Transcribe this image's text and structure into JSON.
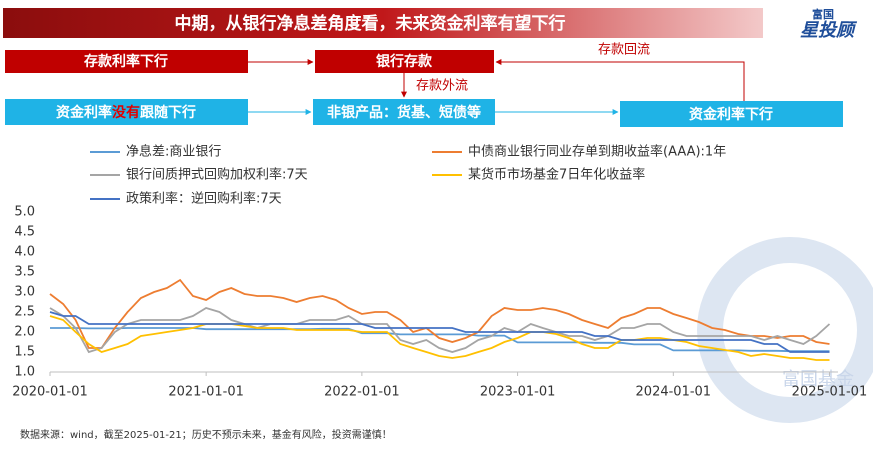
{
  "chart_data": {
    "type": "line",
    "title": "中期，从银行净息差角度看，未来资金利率有望下行",
    "source": "数据来源：wind，截至2025-01-21；历史不预示未来，基金有风险，投资需谨慎！",
    "x": [
      "2020-01-01",
      "2020-02-01",
      "2020-03-01",
      "2020-04-01",
      "2020-05-01",
      "2020-06-01",
      "2020-07-01",
      "2020-08-01",
      "2020-09-01",
      "2020-10-01",
      "2020-11-01",
      "2020-12-01",
      "2021-01-01",
      "2021-02-01",
      "2021-03-01",
      "2021-04-01",
      "2021-05-01",
      "2021-06-01",
      "2021-07-01",
      "2021-08-01",
      "2021-09-01",
      "2021-10-01",
      "2021-11-01",
      "2021-12-01",
      "2022-01-01",
      "2022-02-01",
      "2022-03-01",
      "2022-04-01",
      "2022-05-01",
      "2022-06-01",
      "2022-07-01",
      "2022-08-01",
      "2022-09-01",
      "2022-10-01",
      "2022-11-01",
      "2022-12-01",
      "2023-01-01",
      "2023-02-01",
      "2023-03-01",
      "2023-04-01",
      "2023-05-01",
      "2023-06-01",
      "2023-07-01",
      "2023-08-01",
      "2023-09-01",
      "2023-10-01",
      "2023-11-01",
      "2023-12-01",
      "2024-01-01",
      "2024-02-01",
      "2024-03-01",
      "2024-04-01",
      "2024-05-01",
      "2024-06-01",
      "2024-07-01",
      "2024-08-01",
      "2024-09-01",
      "2024-10-01",
      "2024-11-01",
      "2024-12-01",
      "2025-01-01"
    ],
    "series": [
      {
        "name": "净息差:商业银行",
        "color": "#5b9bd5",
        "values": [
          2.1,
          2.1,
          2.1,
          2.09,
          2.09,
          2.09,
          2.1,
          2.1,
          2.1,
          2.1,
          2.1,
          2.1,
          2.07,
          2.07,
          2.07,
          2.07,
          2.07,
          2.07,
          2.07,
          2.07,
          2.07,
          2.08,
          2.08,
          2.08,
          1.97,
          1.97,
          1.97,
          1.94,
          1.94,
          1.94,
          1.94,
          1.94,
          1.94,
          1.91,
          1.91,
          1.91,
          1.74,
          1.74,
          1.74,
          1.74,
          1.74,
          1.74,
          1.73,
          1.73,
          1.73,
          1.69,
          1.69,
          1.69,
          1.54,
          1.54,
          1.54,
          1.54,
          1.54,
          1.54,
          1.53,
          1.53,
          1.53,
          1.52,
          1.52,
          1.52,
          1.52
        ]
      },
      {
        "name": "中债商业银行同业存单到期收益率(AAA):1年",
        "color": "#ed7d31",
        "values": [
          2.95,
          2.7,
          2.3,
          1.6,
          1.6,
          2.1,
          2.5,
          2.85,
          3.0,
          3.1,
          3.3,
          2.9,
          2.8,
          3.0,
          3.1,
          2.95,
          2.9,
          2.9,
          2.85,
          2.75,
          2.85,
          2.9,
          2.8,
          2.6,
          2.45,
          2.5,
          2.5,
          2.3,
          2.0,
          2.1,
          1.85,
          1.75,
          1.85,
          2.0,
          2.4,
          2.6,
          2.55,
          2.55,
          2.6,
          2.55,
          2.45,
          2.3,
          2.2,
          2.1,
          2.35,
          2.45,
          2.6,
          2.6,
          2.45,
          2.35,
          2.25,
          2.1,
          2.05,
          1.95,
          1.9,
          1.9,
          1.85,
          1.9,
          1.9,
          1.75,
          1.7
        ]
      },
      {
        "name": "银行间质押式回购加权利率:7天",
        "color": "#a5a5a5",
        "values": [
          2.6,
          2.4,
          2.1,
          1.5,
          1.6,
          2.0,
          2.2,
          2.3,
          2.3,
          2.3,
          2.3,
          2.4,
          2.6,
          2.5,
          2.3,
          2.2,
          2.1,
          2.2,
          2.2,
          2.2,
          2.3,
          2.3,
          2.3,
          2.4,
          2.2,
          2.2,
          2.2,
          1.8,
          1.7,
          1.8,
          1.6,
          1.5,
          1.6,
          1.8,
          1.9,
          2.1,
          2.0,
          2.2,
          2.1,
          2.0,
          1.9,
          1.9,
          1.8,
          1.9,
          2.1,
          2.1,
          2.2,
          2.2,
          2.0,
          1.9,
          1.9,
          1.9,
          1.9,
          1.9,
          1.9,
          1.8,
          1.9,
          1.8,
          1.7,
          1.9,
          2.2
        ]
      },
      {
        "name": "某货币市场基金7日年化收益率",
        "color": "#ffc000",
        "values": [
          2.4,
          2.3,
          2.0,
          1.7,
          1.5,
          1.6,
          1.7,
          1.9,
          1.95,
          2.0,
          2.05,
          2.1,
          2.2,
          2.2,
          2.2,
          2.15,
          2.1,
          2.1,
          2.1,
          2.05,
          2.05,
          2.05,
          2.05,
          2.05,
          2.0,
          2.0,
          2.0,
          1.7,
          1.6,
          1.5,
          1.4,
          1.35,
          1.4,
          1.5,
          1.6,
          1.75,
          1.85,
          2.0,
          2.0,
          1.95,
          1.85,
          1.7,
          1.6,
          1.6,
          1.8,
          1.8,
          1.85,
          1.85,
          1.8,
          1.75,
          1.65,
          1.6,
          1.55,
          1.5,
          1.4,
          1.45,
          1.4,
          1.35,
          1.35,
          1.3,
          1.3
        ]
      },
      {
        "name": "政策利率：逆回购利率:7天",
        "color": "#4472c4",
        "values": [
          2.5,
          2.4,
          2.4,
          2.2,
          2.2,
          2.2,
          2.2,
          2.2,
          2.2,
          2.2,
          2.2,
          2.2,
          2.2,
          2.2,
          2.2,
          2.2,
          2.2,
          2.2,
          2.2,
          2.2,
          2.2,
          2.2,
          2.2,
          2.2,
          2.2,
          2.1,
          2.1,
          2.1,
          2.1,
          2.1,
          2.1,
          2.1,
          2.0,
          2.0,
          2.0,
          2.0,
          2.0,
          2.0,
          2.0,
          2.0,
          2.0,
          2.0,
          1.9,
          1.9,
          1.8,
          1.8,
          1.8,
          1.8,
          1.8,
          1.8,
          1.8,
          1.8,
          1.8,
          1.8,
          1.8,
          1.7,
          1.7,
          1.5,
          1.5,
          1.5,
          1.5
        ]
      }
    ],
    "xlim": [
      "2020-01-01",
      "2025-01-21"
    ],
    "xticks": [
      "2020-01-01",
      "2021-01-01",
      "2022-01-01",
      "2023-01-01",
      "2024-01-01",
      "2025-01-01"
    ],
    "ylim": [
      1.0,
      5.0
    ],
    "yticks": [
      {
        "value": 1,
        "label": "1.0"
      },
      {
        "value": 1.5,
        "label": "1.5"
      },
      {
        "value": 2,
        "label": "2.0"
      },
      {
        "value": 2.5,
        "label": "2.5"
      },
      {
        "value": 3,
        "label": "3.0"
      },
      {
        "value": 3.5,
        "label": "3.5"
      },
      {
        "value": 4,
        "label": "4.0"
      },
      {
        "value": 4.5,
        "label": "4.5"
      },
      {
        "value": 5,
        "label": "5.0"
      }
    ]
  },
  "logo": [
    "富国",
    "星投顾"
  ],
  "watermark": "富国基金",
  "flow": {
    "nodes": [
      "存款利率下行",
      "银行存款",
      [
        "资金利率",
        "没有",
        "跟随下行"
      ],
      "非银产品：货基、短债等",
      "资金利率下行"
    ],
    "edge_labels": [
      "存款回流",
      "存款外流"
    ]
  }
}
